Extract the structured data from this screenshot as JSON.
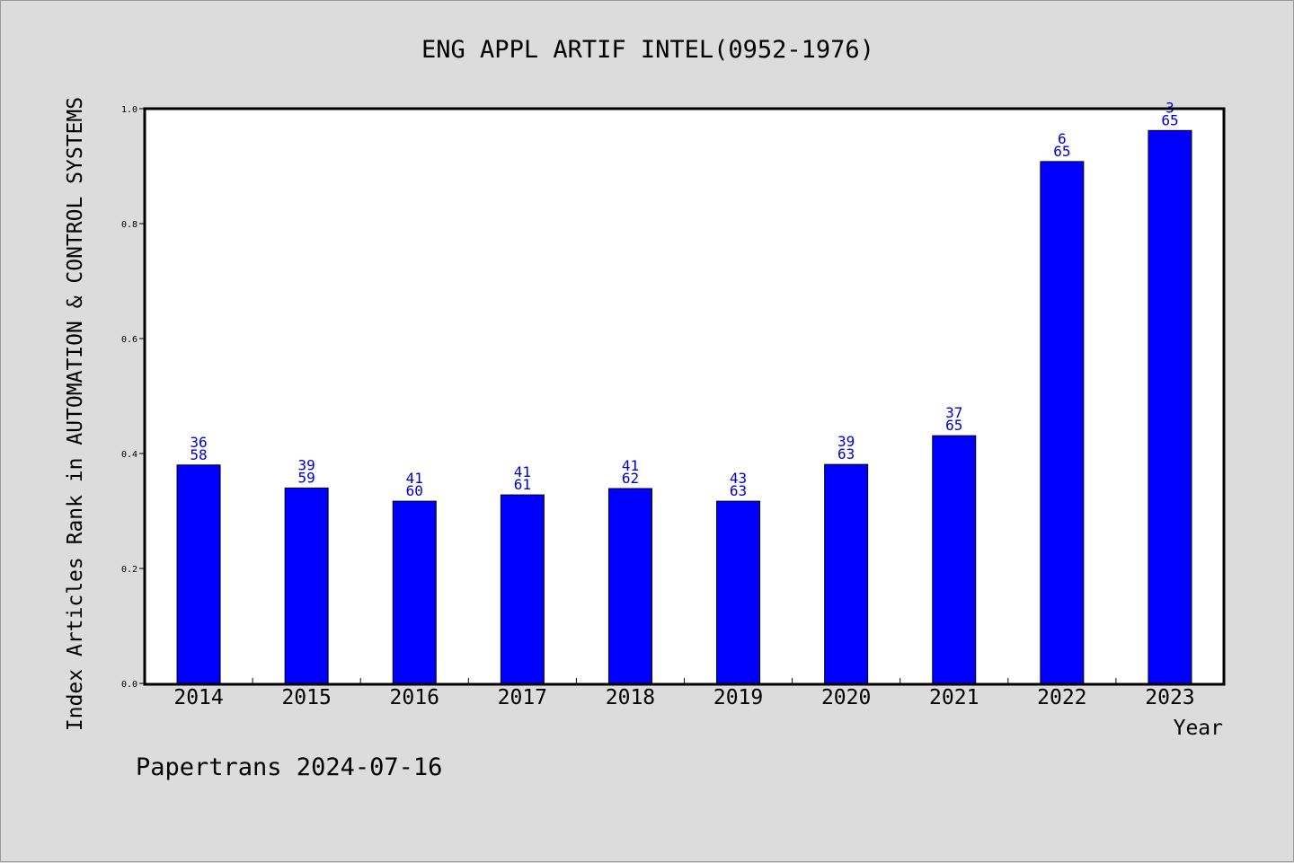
{
  "chart_data": {
    "type": "bar",
    "title": "ENG APPL ARTIF INTEL(0952-1976)",
    "xlabel": "Year",
    "ylabel": "Index Articles Rank in AUTOMATION & CONTROL SYSTEMS",
    "ylim": [
      0,
      1.0
    ],
    "yticks": [
      "0.0",
      "0.2",
      "0.4",
      "0.6",
      "0.8",
      "1.0"
    ],
    "grid": false,
    "bar_color": "#0000ff",
    "label_color": "#0000cc",
    "categories": [
      "2014",
      "2015",
      "2016",
      "2017",
      "2018",
      "2019",
      "2020",
      "2021",
      "2022",
      "2023"
    ],
    "values": [
      0.38,
      0.34,
      0.317,
      0.328,
      0.339,
      0.317,
      0.381,
      0.431,
      0.908,
      0.962
    ],
    "rank_labels": [
      "36",
      "39",
      "41",
      "41",
      "41",
      "43",
      "39",
      "37",
      "6",
      "3"
    ],
    "total_labels": [
      "58",
      "59",
      "60",
      "61",
      "62",
      "63",
      "63",
      "65",
      "65",
      "65"
    ]
  },
  "footer": "Papertrans 2024-07-16"
}
